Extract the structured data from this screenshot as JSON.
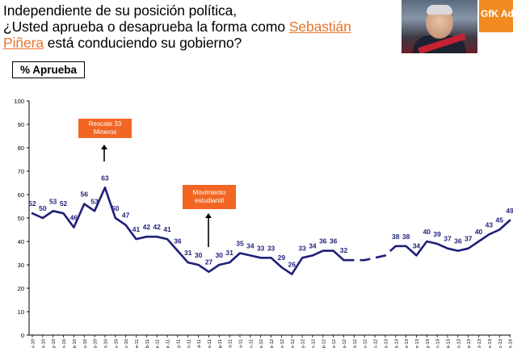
{
  "header": {
    "title_line1": "Independiente de su posición política,",
    "title_line2_pre": "¿Usted aprueba o desaprueba la forma como ",
    "title_highlight1": "Sebastián",
    "title_highlight2": "Piñera",
    "title_line3_post": " está conduciendo su gobierno?",
    "logo_text": "GfK Adir",
    "accent_color": "#e8742b"
  },
  "badge": {
    "label": "% Aprueba"
  },
  "annotations": [
    {
      "text": "Rescate 33 Mineros",
      "point_index": 7
    },
    {
      "text": "Movimiento estudiantil",
      "point_index": 17
    }
  ],
  "chart_data": {
    "type": "line",
    "title": "",
    "xlabel": "",
    "ylabel": "",
    "ylim": [
      0,
      100
    ],
    "yticks": [
      0,
      10,
      20,
      30,
      40,
      50,
      60,
      70,
      80,
      90,
      100
    ],
    "grid": false,
    "line_color": "#1f1f7a",
    "categories": [
      "mar-10",
      "abr-10",
      "may-10",
      "jun-10",
      "jul-10",
      "ago-10",
      "sep-10",
      "oct-10",
      "nov-10",
      "dic-10",
      "ene-11",
      "feb-11",
      "mar-11",
      "abr-11",
      "may-11",
      "jun-11",
      "jul-11",
      "ago-11",
      "sep-11",
      "oct-11",
      "nov-11",
      "dic-11",
      "ene-12",
      "feb-12",
      "mar-12",
      "abr-12",
      "may-12",
      "jun-12",
      "jul-12",
      "ago-12",
      "sep-12",
      "oct-12",
      "nov-12",
      "dic-12",
      "ene-13",
      "feb-13",
      "mar-13",
      "abr-13",
      "may-13",
      "jun-13",
      "jul-13",
      "ago-13",
      "sep-13",
      "oct-13",
      "nov-13",
      "dic-13",
      "ene-14"
    ],
    "series": [
      {
        "values": [
          52,
          50,
          53,
          52,
          46,
          56,
          53,
          63,
          50,
          47,
          41,
          42,
          42,
          41,
          36,
          31,
          30,
          27,
          30,
          31,
          35,
          34,
          33,
          33,
          29,
          26,
          33,
          34,
          36,
          36,
          32,
          null,
          null,
          null,
          null,
          38,
          38,
          34,
          40,
          39,
          37,
          36,
          37,
          40,
          43,
          45,
          49
        ],
        "dashed_gap": {
          "from": 30,
          "to": 35,
          "mid": [
            32,
            33,
            34
          ]
        }
      }
    ],
    "data_labels": [
      {
        "i": 0,
        "v": "52"
      },
      {
        "i": 1,
        "v": "50"
      },
      {
        "i": 2,
        "v": "53"
      },
      {
        "i": 3,
        "v": "52"
      },
      {
        "i": 4,
        "v": "46"
      },
      {
        "i": 5,
        "v": "56"
      },
      {
        "i": 6,
        "v": "53"
      },
      {
        "i": 7,
        "v": "63"
      },
      {
        "i": 8,
        "v": "50"
      },
      {
        "i": 9,
        "v": "47"
      },
      {
        "i": 10,
        "v": "41"
      },
      {
        "i": 11,
        "v": "42"
      },
      {
        "i": 12,
        "v": "42"
      },
      {
        "i": 13,
        "v": "41"
      },
      {
        "i": 14,
        "v": "36"
      },
      {
        "i": 15,
        "v": "31"
      },
      {
        "i": 16,
        "v": "30"
      },
      {
        "i": 17,
        "v": "27"
      },
      {
        "i": 18,
        "v": "30"
      },
      {
        "i": 19,
        "v": "31"
      },
      {
        "i": 20,
        "v": "35"
      },
      {
        "i": 21,
        "v": "34"
      },
      {
        "i": 22,
        "v": "33"
      },
      {
        "i": 23,
        "v": "33"
      },
      {
        "i": 24,
        "v": "29"
      },
      {
        "i": 25,
        "v": "26"
      },
      {
        "i": 26,
        "v": "33"
      },
      {
        "i": 27,
        "v": "34"
      },
      {
        "i": 28,
        "v": "36"
      },
      {
        "i": 29,
        "v": "36"
      },
      {
        "i": 30,
        "v": "32"
      },
      {
        "i": 35,
        "v": "38"
      },
      {
        "i": 36,
        "v": "38"
      },
      {
        "i": 37,
        "v": "34"
      },
      {
        "i": 38,
        "v": "40"
      },
      {
        "i": 39,
        "v": "39"
      },
      {
        "i": 40,
        "v": "37"
      },
      {
        "i": 41,
        "v": "36"
      },
      {
        "i": 42,
        "v": "37"
      },
      {
        "i": 43,
        "v": "40"
      },
      {
        "i": 44,
        "v": "43"
      },
      {
        "i": 45,
        "v": "45"
      },
      {
        "i": 46,
        "v": "49"
      }
    ]
  }
}
